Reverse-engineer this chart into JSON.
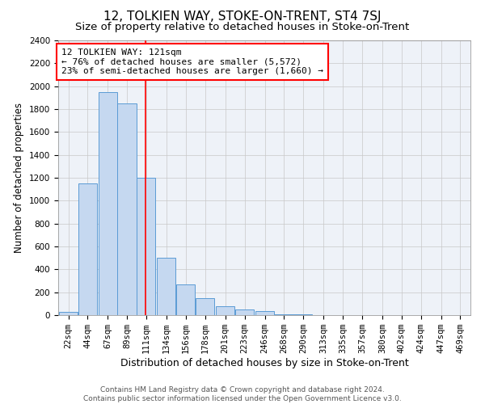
{
  "title": "12, TOLKIEN WAY, STOKE-ON-TRENT, ST4 7SJ",
  "subtitle": "Size of property relative to detached houses in Stoke-on-Trent",
  "xlabel": "Distribution of detached houses by size in Stoke-on-Trent",
  "ylabel": "Number of detached properties",
  "footer_line1": "Contains HM Land Registry data © Crown copyright and database right 2024.",
  "footer_line2": "Contains public sector information licensed under the Open Government Licence v3.0.",
  "annotation_line1": "12 TOLKIEN WAY: 121sqm",
  "annotation_line2": "← 76% of detached houses are smaller (5,572)",
  "annotation_line3": "23% of semi-detached houses are larger (1,660) →",
  "bar_color": "#c5d8f0",
  "bar_edge_color": "#5b9bd5",
  "redline_x": 121,
  "categories": [
    "22sqm",
    "44sqm",
    "67sqm",
    "89sqm",
    "111sqm",
    "134sqm",
    "156sqm",
    "178sqm",
    "201sqm",
    "223sqm",
    "246sqm",
    "268sqm",
    "290sqm",
    "313sqm",
    "335sqm",
    "357sqm",
    "380sqm",
    "402sqm",
    "424sqm",
    "447sqm",
    "469sqm"
  ],
  "bin_starts": [
    22,
    44,
    67,
    89,
    111,
    134,
    156,
    178,
    201,
    223,
    246,
    268,
    290,
    313,
    335,
    357,
    380,
    402,
    424,
    447,
    469
  ],
  "bin_width": 22,
  "values": [
    30,
    1150,
    1950,
    1850,
    1200,
    500,
    270,
    150,
    75,
    50,
    35,
    10,
    5,
    2,
    1,
    0,
    0,
    0,
    0,
    0,
    0
  ],
  "ylim": [
    0,
    2400
  ],
  "yticks": [
    0,
    200,
    400,
    600,
    800,
    1000,
    1200,
    1400,
    1600,
    1800,
    2000,
    2200,
    2400
  ],
  "grid_color": "#c8c8c8",
  "bg_color": "#eef2f8",
  "title_fontsize": 11,
  "subtitle_fontsize": 9.5,
  "xlabel_fontsize": 9,
  "ylabel_fontsize": 8.5,
  "tick_fontsize": 7.5,
  "annotation_fontsize": 8,
  "footer_fontsize": 6.5
}
